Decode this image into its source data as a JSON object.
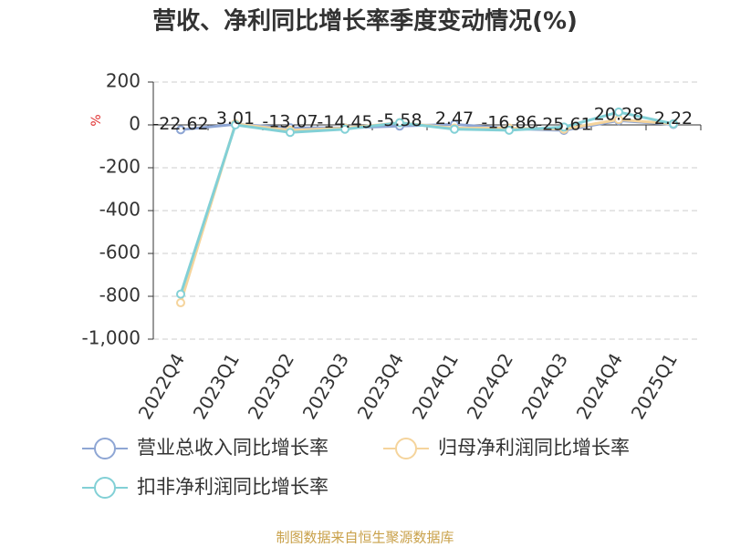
{
  "chart_data": {
    "type": "line",
    "title": "营收、净利同比增长率季度变动情况(%)",
    "y_label": "%",
    "categories": [
      "2022Q4",
      "2023Q1",
      "2023Q2",
      "2023Q3",
      "2023Q4",
      "2024Q1",
      "2024Q2",
      "2024Q3",
      "2024Q4",
      "2025Q1"
    ],
    "series": [
      {
        "name": "营业总收入同比增长率",
        "color": "#8ea6d4",
        "values": [
          -22.62,
          3.01,
          -13.07,
          -14.45,
          -5.58,
          2.47,
          -16.86,
          -25.61,
          20.28,
          2.22
        ],
        "show_labels": true
      },
      {
        "name": "归母净利润同比增长率",
        "color": "#f5d49c",
        "values": [
          -830,
          5,
          -25,
          -15,
          10,
          -15,
          -15,
          -20,
          25,
          5
        ],
        "show_labels": false
      },
      {
        "name": "扣非净利润同比增长率",
        "color": "#82d0d6",
        "values": [
          -790,
          0,
          -35,
          -20,
          10,
          -20,
          -25,
          -10,
          60,
          5
        ],
        "show_labels": false
      }
    ],
    "ylim": [
      -1000,
      200
    ],
    "yticks": [
      200,
      0,
      -200,
      -400,
      -600,
      -800,
      {
        "value": -1000,
        "label": "-1,000"
      }
    ],
    "grid": true,
    "source": "制图数据来自恒生聚源数据库"
  }
}
